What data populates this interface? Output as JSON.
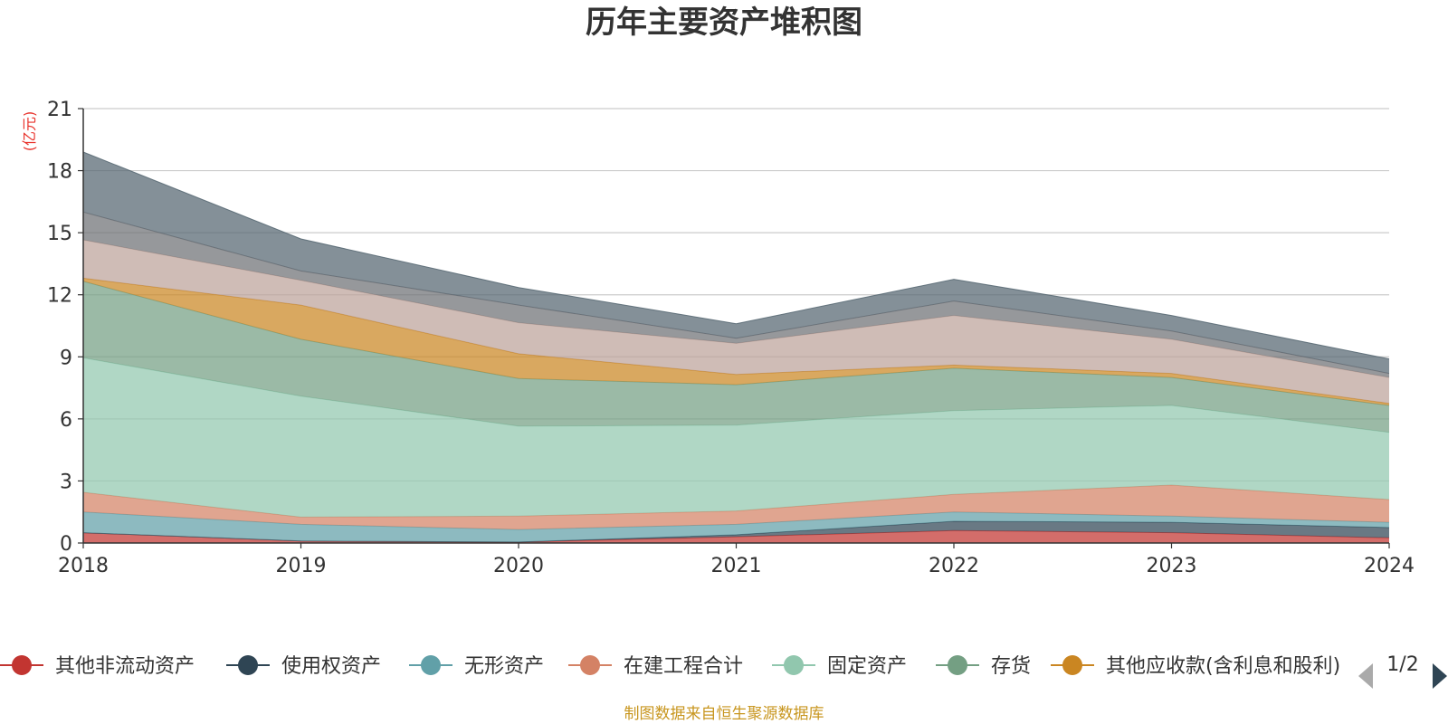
{
  "chart_data": {
    "type": "area",
    "stacked": true,
    "title": "历年主要资产堆积图",
    "y_unit": "(亿元)",
    "ylim": [
      0,
      21
    ],
    "yticks": [
      0,
      3,
      6,
      9,
      12,
      15,
      18,
      21
    ],
    "grid": true,
    "legend_position": "bottom",
    "categories": [
      "2018",
      "2019",
      "2020",
      "2021",
      "2022",
      "2023",
      "2024"
    ],
    "series": [
      {
        "name": "其他非流动资产",
        "color": "#c23531",
        "values": [
          0.5,
          0.1,
          0.05,
          0.3,
          0.6,
          0.5,
          0.25
        ]
      },
      {
        "name": "使用权资产",
        "color": "#2f4554",
        "values": [
          0.0,
          0.0,
          0.0,
          0.1,
          0.45,
          0.5,
          0.5
        ]
      },
      {
        "name": "无形资产",
        "color": "#61a0a8",
        "values": [
          1.0,
          0.8,
          0.6,
          0.5,
          0.45,
          0.3,
          0.25
        ]
      },
      {
        "name": "在建工程合计",
        "color": "#d48265",
        "values": [
          0.95,
          0.35,
          0.65,
          0.65,
          0.85,
          1.5,
          1.1
        ]
      },
      {
        "name": "固定资产",
        "color": "#91c7ae",
        "values": [
          6.5,
          5.85,
          4.35,
          4.15,
          4.05,
          3.85,
          3.25
        ]
      },
      {
        "name": "存货",
        "color": "#749f83",
        "values": [
          3.7,
          2.75,
          2.3,
          1.95,
          2.05,
          1.35,
          1.3
        ]
      },
      {
        "name": "其他应收款(含利息和股利)",
        "color": "#ca8622",
        "values": [
          0.15,
          1.65,
          1.2,
          0.5,
          0.15,
          0.2,
          0.1
        ]
      },
      {
        "name": "",
        "color": "#bda29a",
        "values": [
          1.85,
          1.2,
          1.5,
          1.5,
          2.4,
          1.65,
          1.25
        ]
      },
      {
        "name": "",
        "color": "#6e7074",
        "values": [
          1.35,
          0.45,
          0.85,
          0.25,
          0.7,
          0.4,
          0.2
        ]
      },
      {
        "name": "",
        "color": "#546570",
        "values": [
          2.9,
          1.55,
          0.85,
          0.7,
          1.05,
          0.75,
          0.7
        ]
      }
    ],
    "legend": {
      "page": "1/2"
    },
    "source": "制图数据来自恒生聚源数据库"
  }
}
